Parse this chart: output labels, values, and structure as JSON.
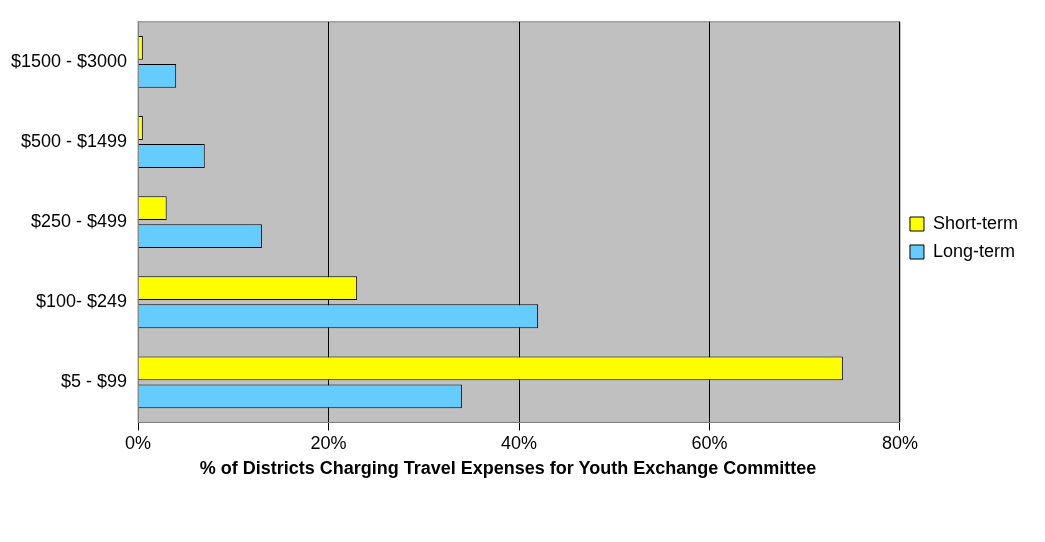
{
  "chart_data": {
    "type": "bar",
    "orientation": "horizontal",
    "xlabel": "% of Districts Charging Travel Expenses for Youth Exchange Committee",
    "categories": [
      "$1500 - $3000",
      "$500 - $1499",
      "$250 - $499",
      "$100- $249",
      "$5 - $99"
    ],
    "series": [
      {
        "name": "Short-term",
        "color": "#ffff00",
        "values": [
          0.5,
          0.5,
          3,
          23,
          74
        ]
      },
      {
        "name": "Long-term",
        "color": "#66ccff",
        "values": [
          4,
          7,
          13,
          42,
          34
        ]
      }
    ],
    "xlim": [
      0,
      80
    ],
    "xticks": [
      {
        "value": 0,
        "label": "0%"
      },
      {
        "value": 20,
        "label": "20%"
      },
      {
        "value": 40,
        "label": "40%"
      },
      {
        "value": 60,
        "label": "60%"
      },
      {
        "value": 80,
        "label": "80%"
      }
    ],
    "grid": "x",
    "legend": "right"
  }
}
